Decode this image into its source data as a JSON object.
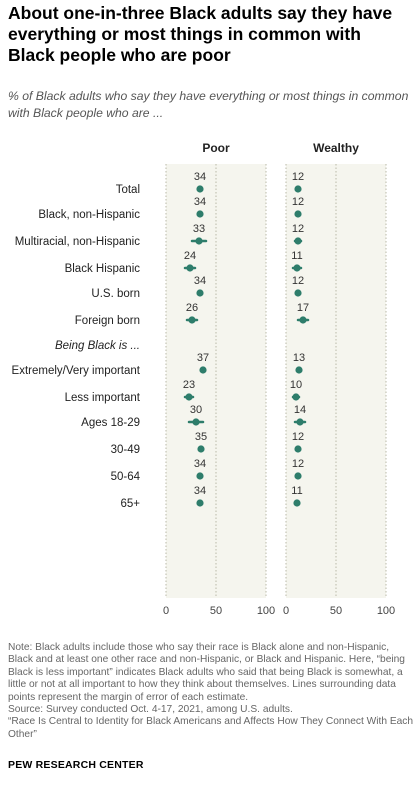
{
  "title": "About one-in-three Black adults say they have everything or most things in common with Black people who are poor",
  "subtitle": "% of Black adults who say they have everything or most things in common with Black people who are ...",
  "colors": {
    "dot": "#2e7d6b",
    "panel_bg": "#f5f5ee",
    "grid": "#b9b9a8"
  },
  "chart_data": {
    "type": "dot",
    "panels": [
      "Poor",
      "Wealthy"
    ],
    "xlim": [
      0,
      100
    ],
    "ticks": [
      0,
      50,
      100
    ],
    "tick_labels": [
      "0",
      "50",
      "100"
    ],
    "groups": [
      {
        "heading": "",
        "rows": [
          {
            "label": "Total",
            "poor": 34,
            "poor_err": 0,
            "wealthy": 12,
            "wealthy_err": 0
          }
        ]
      },
      {
        "heading": "",
        "rows": [
          {
            "label": "Black, non-Hispanic",
            "poor": 34,
            "poor_err": 0,
            "wealthy": 12,
            "wealthy_err": 0
          },
          {
            "label": "Multiracial, non-Hispanic",
            "poor": 33,
            "poor_err": 7,
            "wealthy": 12,
            "wealthy_err": 3
          },
          {
            "label": "Black Hispanic",
            "poor": 24,
            "poor_err": 5,
            "wealthy": 11,
            "wealthy_err": 4
          }
        ]
      },
      {
        "heading": "",
        "rows": [
          {
            "label": "U.S. born",
            "poor": 34,
            "poor_err": 0,
            "wealthy": 12,
            "wealthy_err": 0
          },
          {
            "label": "Foreign born",
            "poor": 26,
            "poor_err": 5,
            "wealthy": 17,
            "wealthy_err": 5
          }
        ]
      },
      {
        "heading": "Being Black is ...",
        "rows": [
          {
            "label": "Extremely/Very important",
            "poor": 37,
            "poor_err": 0,
            "wealthy": 13,
            "wealthy_err": 0
          },
          {
            "label": "Less important",
            "poor": 23,
            "poor_err": 4,
            "wealthy": 10,
            "wealthy_err": 3
          }
        ]
      },
      {
        "heading": "",
        "rows": [
          {
            "label": "Ages 18-29",
            "poor": 30,
            "poor_err": 7,
            "wealthy": 14,
            "wealthy_err": 5
          },
          {
            "label": "30-49",
            "poor": 35,
            "poor_err": 0,
            "wealthy": 12,
            "wealthy_err": 0
          },
          {
            "label": "50-64",
            "poor": 34,
            "poor_err": 0,
            "wealthy": 12,
            "wealthy_err": 0
          },
          {
            "label": "65+",
            "poor": 34,
            "poor_err": 0,
            "wealthy": 11,
            "wealthy_err": 0
          }
        ]
      }
    ]
  },
  "notes": {
    "note": "Note: Black adults include those who say their race is Black alone and non-Hispanic, Black and at least one other race and non-Hispanic, or Black and Hispanic. Here, “being Black is less important” indicates Black adults who said that being Black is somewhat, a little or not at all important to how they think about themselves. Lines surrounding data points represent the margin of error of each estimate.",
    "source": "Source: Survey conducted Oct. 4-17, 2021, among U.S. adults.",
    "report": "“Race Is Central to Identity for Black Americans and Affects How They Connect With Each Other”"
  },
  "brand": "PEW RESEARCH CENTER"
}
